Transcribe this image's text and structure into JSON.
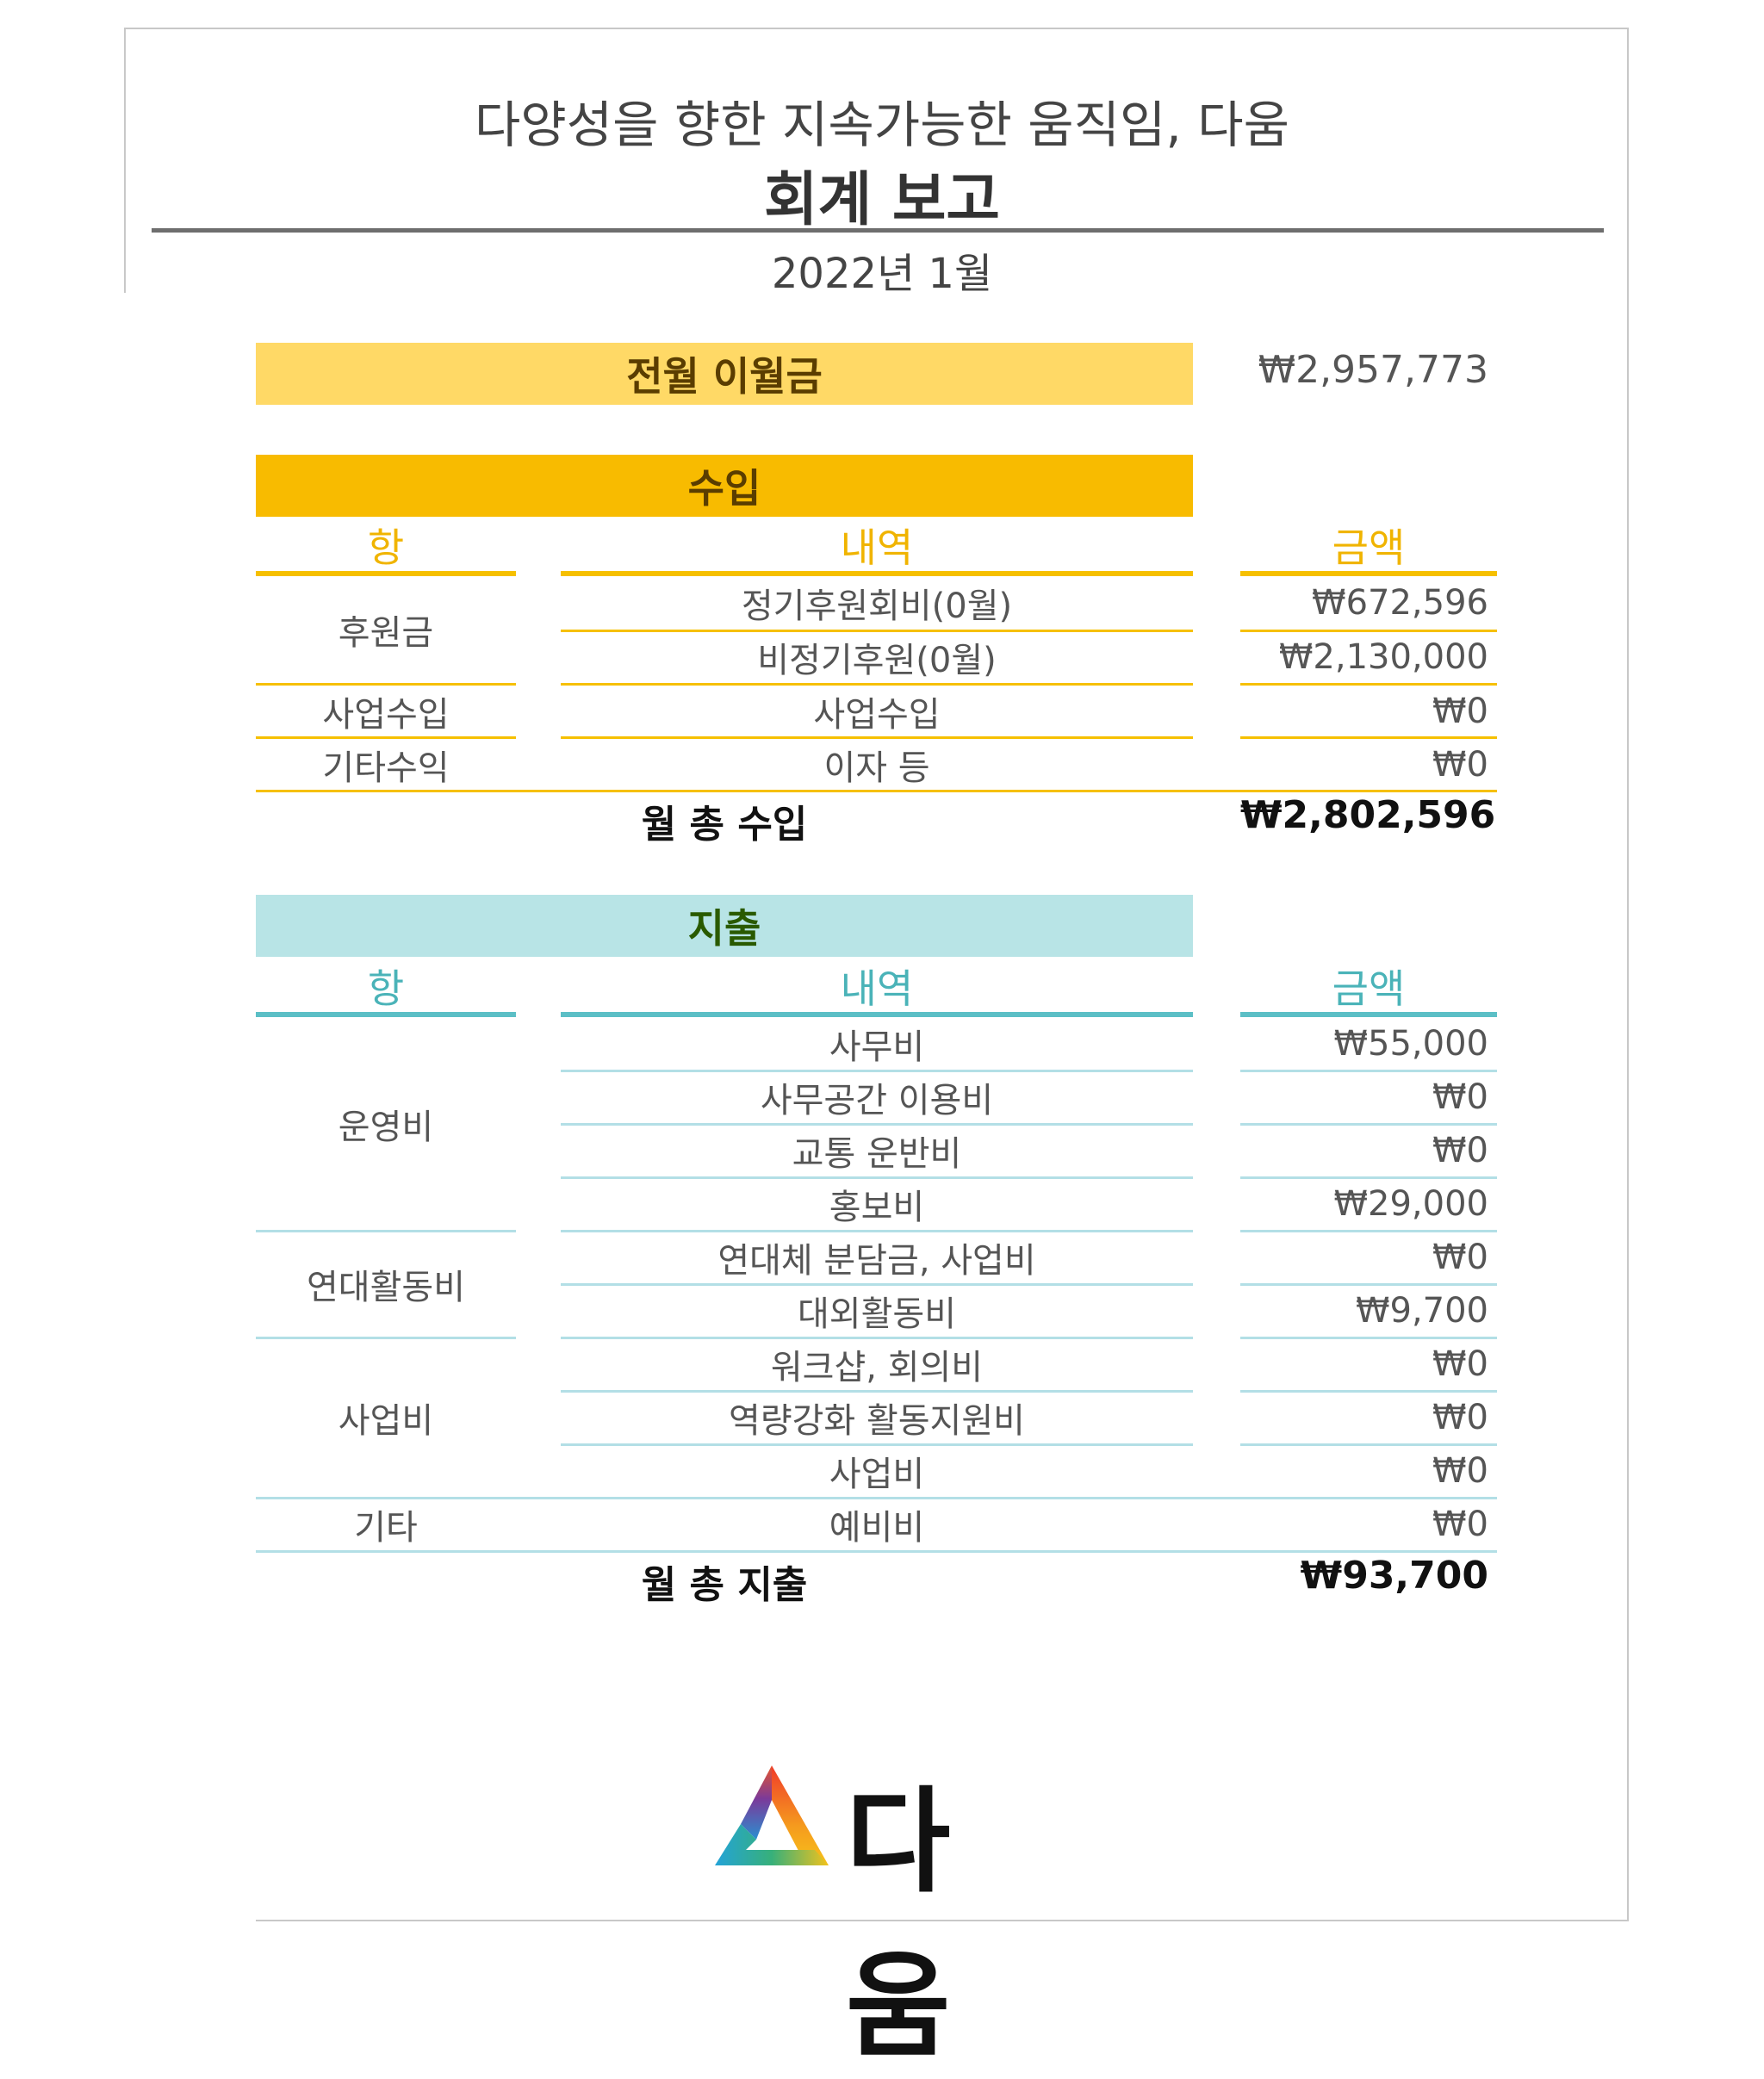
{
  "header": {
    "subtitle": "다양성을 향한 지속가능한 움직임, 다움",
    "title": "회계 보고",
    "period": "2022년 1월"
  },
  "carryover": {
    "label": "전월 이월금",
    "amount": "₩2,957,773"
  },
  "income": {
    "title": "수입",
    "columns": {
      "category": "항",
      "detail": "내역",
      "amount": "금액"
    },
    "groups": [
      {
        "category": "후원금",
        "rows": [
          {
            "detail": "정기후원회비(0월)",
            "amount": "₩672,596"
          },
          {
            "detail": "비정기후원(0월)",
            "amount": "₩2,130,000"
          }
        ]
      },
      {
        "category": "사업수입",
        "rows": [
          {
            "detail": "사업수입",
            "amount": "₩0"
          }
        ]
      },
      {
        "category": "기타수익",
        "rows": [
          {
            "detail": "이자 등",
            "amount": "₩0"
          }
        ]
      }
    ],
    "total_label": "월 총 수입",
    "total_amount": "₩2,802,596"
  },
  "expense": {
    "title": "지출",
    "columns": {
      "category": "항",
      "detail": "내역",
      "amount": "금액"
    },
    "groups": [
      {
        "category": "운영비",
        "rows": [
          {
            "detail": "사무비",
            "amount": "₩55,000"
          },
          {
            "detail": "사무공간 이용비",
            "amount": "₩0"
          },
          {
            "detail": "교통 운반비",
            "amount": "₩0"
          },
          {
            "detail": "홍보비",
            "amount": "₩29,000"
          }
        ]
      },
      {
        "category": "연대활동비",
        "rows": [
          {
            "detail": "연대체 분담금, 사업비",
            "amount": "₩0"
          },
          {
            "detail": "대외활동비",
            "amount": "₩9,700"
          }
        ]
      },
      {
        "category": "사업비",
        "rows": [
          {
            "detail": "워크샵, 회의비",
            "amount": "₩0"
          },
          {
            "detail": "역량강화 활동지원비",
            "amount": "₩0"
          },
          {
            "detail": "사업비",
            "amount": "₩0"
          }
        ]
      },
      {
        "category": "기타",
        "rows": [
          {
            "detail": "예비비",
            "amount": "₩0"
          }
        ]
      }
    ],
    "total_label": "월 총 지출",
    "total_amount": "₩93,700"
  },
  "logo": {
    "text": "다움",
    "icon": "triangle-gradient-logo-icon"
  },
  "colors": {
    "income_bar": "#f8bb00",
    "carryover_bar": "#ffd966",
    "income_accent": "#f0b400",
    "expense_bar": "#b8e4e6",
    "expense_accent": "#4ab3b8"
  }
}
